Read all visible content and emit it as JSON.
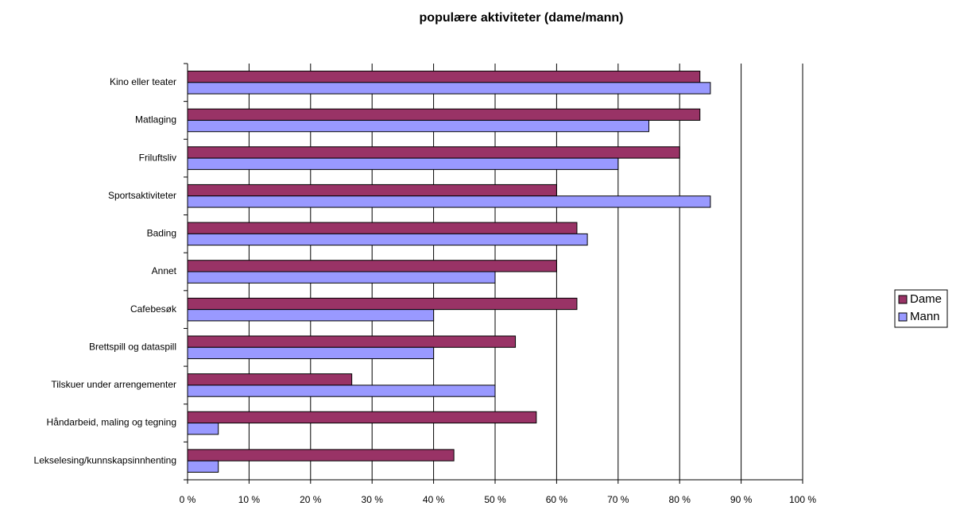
{
  "chart_data": {
    "type": "hbar",
    "title": "populære  aktiviteter (dame/mann)",
    "categories": [
      "Kino eller teater",
      "Matlaging",
      "Friluftsliv",
      "Sportsaktiviteter",
      "Bading",
      "Annet",
      "Cafebesøk",
      "Brettspill og dataspill",
      "Tilskuer under arrengementer",
      "Håndarbeid, maling og tegning",
      "Lekselesing/kunnskapsinnhenting"
    ],
    "series": [
      {
        "name": "Dame",
        "color": "#993366",
        "values": [
          83.3,
          83.3,
          80,
          60,
          63.3,
          60,
          63.3,
          53.3,
          26.7,
          56.7,
          43.3
        ]
      },
      {
        "name": "Mann",
        "color": "#9999ff",
        "values": [
          85,
          75,
          70,
          85,
          65,
          50,
          40,
          40,
          50,
          5,
          5
        ]
      }
    ],
    "xlim": [
      0,
      100
    ],
    "xticks": [
      {
        "value": 0,
        "label": "0 %"
      },
      {
        "value": 10,
        "label": "10 %"
      },
      {
        "value": 20,
        "label": "20 %"
      },
      {
        "value": 30,
        "label": "30 %"
      },
      {
        "value": 40,
        "label": "40 %"
      },
      {
        "value": 50,
        "label": "50 %"
      },
      {
        "value": 60,
        "label": "60 %"
      },
      {
        "value": 70,
        "label": "70 %"
      },
      {
        "value": 80,
        "label": "80 %"
      },
      {
        "value": 90,
        "label": "90 %"
      },
      {
        "value": 100,
        "label": "100 %"
      }
    ],
    "grid": true,
    "legend": "right"
  }
}
